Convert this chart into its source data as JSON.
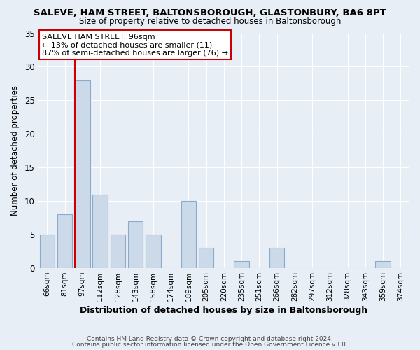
{
  "title": "SALEVE, HAM STREET, BALTONSBOROUGH, GLASTONBURY, BA6 8PT",
  "subtitle": "Size of property relative to detached houses in Baltonsborough",
  "xlabel": "Distribution of detached houses by size in Baltonsborough",
  "ylabel": "Number of detached properties",
  "footer1": "Contains HM Land Registry data © Crown copyright and database right 2024.",
  "footer2": "Contains public sector information licensed under the Open Government Licence v3.0.",
  "bar_labels": [
    "66sqm",
    "81sqm",
    "97sqm",
    "112sqm",
    "128sqm",
    "143sqm",
    "158sqm",
    "174sqm",
    "189sqm",
    "205sqm",
    "220sqm",
    "235sqm",
    "251sqm",
    "266sqm",
    "282sqm",
    "297sqm",
    "312sqm",
    "328sqm",
    "343sqm",
    "359sqm",
    "374sqm"
  ],
  "bar_values": [
    5,
    8,
    28,
    11,
    5,
    7,
    5,
    0,
    10,
    3,
    0,
    1,
    0,
    3,
    0,
    0,
    0,
    0,
    0,
    1,
    0
  ],
  "bar_color": "#ccd9e8",
  "bar_edge_color": "#88aacc",
  "highlight_index": 2,
  "marker_line_color": "#cc0000",
  "ylim": [
    0,
    35
  ],
  "yticks": [
    0,
    5,
    10,
    15,
    20,
    25,
    30,
    35
  ],
  "annotation_title": "SALEVE HAM STREET: 96sqm",
  "annotation_line1": "← 13% of detached houses are smaller (11)",
  "annotation_line2": "87% of semi-detached houses are larger (76) →",
  "annotation_box_color": "#ffffff",
  "annotation_box_edge": "#cc0000",
  "background_color": "#e8eef5",
  "plot_bg_color": "#e8eef5",
  "grid_color": "#ffffff"
}
